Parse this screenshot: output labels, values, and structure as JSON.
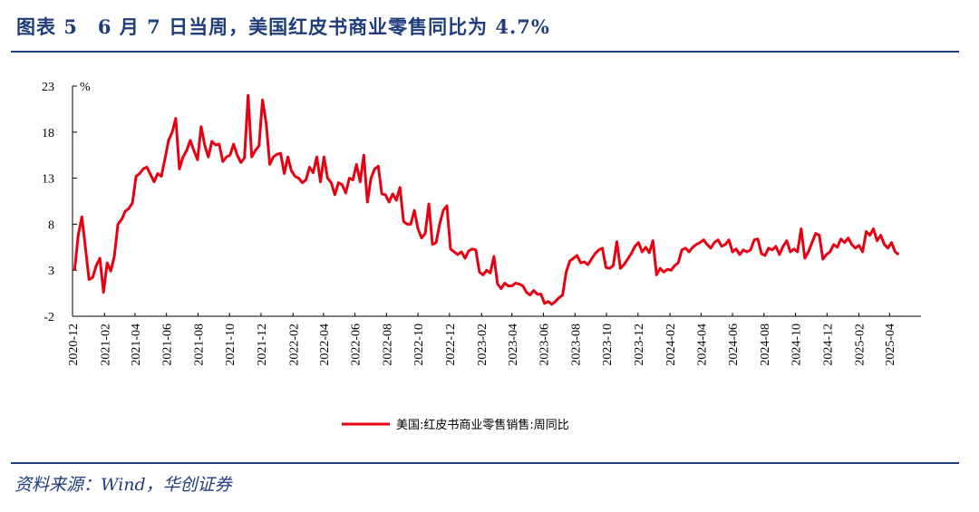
{
  "header": {
    "title": "图表 5　6 月 7 日当周，美国红皮书商业零售同比为 4.7%"
  },
  "footer": {
    "source": "资料来源：Wind，华创证券"
  },
  "colors": {
    "accent": "#1f3d7a",
    "series": "#e60012"
  },
  "chart_data": {
    "type": "line",
    "unit": "%",
    "ylim": [
      -2,
      23
    ],
    "yticks": [
      -2,
      3,
      8,
      13,
      18,
      23
    ],
    "xlim": [
      "2020-12",
      "2025-06"
    ],
    "xticks": [
      "2020-12",
      "2021-02",
      "2021-04",
      "2021-06",
      "2021-08",
      "2021-10",
      "2021-12",
      "2022-02",
      "2022-04",
      "2022-06",
      "2022-08",
      "2022-10",
      "2022-12",
      "2023-02",
      "2023-04",
      "2023-06",
      "2023-08",
      "2023-10",
      "2023-12",
      "2024-02",
      "2024-04",
      "2024-06",
      "2024-08",
      "2024-10",
      "2024-12",
      "2025-02",
      "2025-04"
    ],
    "grid": false,
    "legend_position": "bottom-center",
    "series": [
      {
        "name": "美国:红皮书商业零售销售:周同比",
        "points": [
          [
            "2020-12-05",
            3.0
          ],
          [
            "2020-12-12",
            6.8
          ],
          [
            "2020-12-19",
            8.8
          ],
          [
            "2020-12-26",
            5.5
          ],
          [
            "2021-01-02",
            2.0
          ],
          [
            "2021-01-09",
            2.2
          ],
          [
            "2021-01-16",
            3.5
          ],
          [
            "2021-01-23",
            4.3
          ],
          [
            "2021-01-30",
            0.6
          ],
          [
            "2021-02-06",
            3.8
          ],
          [
            "2021-02-13",
            2.9
          ],
          [
            "2021-02-20",
            4.5
          ],
          [
            "2021-02-27",
            8.0
          ],
          [
            "2021-03-06",
            8.5
          ],
          [
            "2021-03-13",
            9.4
          ],
          [
            "2021-03-20",
            9.7
          ],
          [
            "2021-03-27",
            10.3
          ],
          [
            "2021-04-03",
            13.2
          ],
          [
            "2021-04-10",
            13.5
          ],
          [
            "2021-04-17",
            14.0
          ],
          [
            "2021-04-24",
            14.2
          ],
          [
            "2021-05-01",
            13.4
          ],
          [
            "2021-05-08",
            12.6
          ],
          [
            "2021-05-15",
            13.5
          ],
          [
            "2021-05-22",
            13.2
          ],
          [
            "2021-05-29",
            15.1
          ],
          [
            "2021-06-05",
            17.1
          ],
          [
            "2021-06-12",
            18.0
          ],
          [
            "2021-06-19",
            19.5
          ],
          [
            "2021-06-26",
            14.0
          ],
          [
            "2021-07-03",
            15.3
          ],
          [
            "2021-07-10",
            16.0
          ],
          [
            "2021-07-17",
            17.1
          ],
          [
            "2021-07-24",
            16.0
          ],
          [
            "2021-07-31",
            15.0
          ],
          [
            "2021-08-07",
            18.6
          ],
          [
            "2021-08-14",
            16.6
          ],
          [
            "2021-08-21",
            15.3
          ],
          [
            "2021-08-28",
            17.0
          ],
          [
            "2021-09-04",
            16.6
          ],
          [
            "2021-09-11",
            16.7
          ],
          [
            "2021-09-18",
            14.8
          ],
          [
            "2021-09-25",
            15.3
          ],
          [
            "2021-10-02",
            15.5
          ],
          [
            "2021-10-09",
            16.7
          ],
          [
            "2021-10-16",
            15.5
          ],
          [
            "2021-10-23",
            14.7
          ],
          [
            "2021-10-30",
            15.2
          ],
          [
            "2021-11-06",
            22.0
          ],
          [
            "2021-11-13",
            15.3
          ],
          [
            "2021-11-20",
            16.0
          ],
          [
            "2021-11-27",
            16.5
          ],
          [
            "2021-12-04",
            21.5
          ],
          [
            "2021-12-11",
            19.0
          ],
          [
            "2021-12-18",
            14.5
          ],
          [
            "2021-12-25",
            15.3
          ],
          [
            "2022-01-01",
            15.6
          ],
          [
            "2022-01-08",
            15.7
          ],
          [
            "2022-01-15",
            13.5
          ],
          [
            "2022-01-22",
            15.3
          ],
          [
            "2022-01-29",
            13.8
          ],
          [
            "2022-02-05",
            13.2
          ],
          [
            "2022-02-12",
            13.0
          ],
          [
            "2022-02-19",
            12.5
          ],
          [
            "2022-02-26",
            12.8
          ],
          [
            "2022-03-05",
            14.2
          ],
          [
            "2022-03-12",
            13.6
          ],
          [
            "2022-03-19",
            15.3
          ],
          [
            "2022-03-26",
            12.6
          ],
          [
            "2022-04-02",
            15.3
          ],
          [
            "2022-04-09",
            13.0
          ],
          [
            "2022-04-16",
            12.5
          ],
          [
            "2022-04-23",
            11.2
          ],
          [
            "2022-04-30",
            12.5
          ],
          [
            "2022-05-07",
            12.3
          ],
          [
            "2022-05-14",
            11.4
          ],
          [
            "2022-05-21",
            13.0
          ],
          [
            "2022-05-28",
            12.8
          ],
          [
            "2022-06-04",
            14.5
          ],
          [
            "2022-06-11",
            12.6
          ],
          [
            "2022-06-18",
            15.5
          ],
          [
            "2022-06-25",
            10.4
          ],
          [
            "2022-07-02",
            13.0
          ],
          [
            "2022-07-09",
            14.0
          ],
          [
            "2022-07-16",
            14.3
          ],
          [
            "2022-07-23",
            11.3
          ],
          [
            "2022-07-30",
            11.2
          ],
          [
            "2022-08-06",
            10.4
          ],
          [
            "2022-08-13",
            11.3
          ],
          [
            "2022-08-20",
            10.6
          ],
          [
            "2022-08-27",
            12.0
          ],
          [
            "2022-09-03",
            8.3
          ],
          [
            "2022-09-10",
            8.0
          ],
          [
            "2022-09-17",
            8.0
          ],
          [
            "2022-09-24",
            9.5
          ],
          [
            "2022-10-01",
            7.5
          ],
          [
            "2022-10-08",
            6.5
          ],
          [
            "2022-10-15",
            7.0
          ],
          [
            "2022-10-22",
            10.2
          ],
          [
            "2022-10-29",
            5.8
          ],
          [
            "2022-11-05",
            6.0
          ],
          [
            "2022-11-12",
            8.0
          ],
          [
            "2022-11-19",
            9.5
          ],
          [
            "2022-11-26",
            10.0
          ],
          [
            "2022-12-03",
            5.3
          ],
          [
            "2022-12-10",
            5.0
          ],
          [
            "2022-12-17",
            4.7
          ],
          [
            "2022-12-24",
            5.0
          ],
          [
            "2022-12-31",
            4.3
          ],
          [
            "2023-01-07",
            5.1
          ],
          [
            "2023-01-14",
            5.3
          ],
          [
            "2023-01-21",
            5.2
          ],
          [
            "2023-01-28",
            2.8
          ],
          [
            "2023-02-04",
            2.5
          ],
          [
            "2023-02-11",
            3.0
          ],
          [
            "2023-02-18",
            2.7
          ],
          [
            "2023-02-25",
            4.5
          ],
          [
            "2023-03-04",
            1.5
          ],
          [
            "2023-03-11",
            1.0
          ],
          [
            "2023-03-18",
            1.6
          ],
          [
            "2023-03-25",
            1.3
          ],
          [
            "2023-04-01",
            1.3
          ],
          [
            "2023-04-08",
            1.6
          ],
          [
            "2023-04-15",
            1.5
          ],
          [
            "2023-04-22",
            1.3
          ],
          [
            "2023-04-29",
            0.6
          ],
          [
            "2023-05-06",
            0.3
          ],
          [
            "2023-05-13",
            0.8
          ],
          [
            "2023-05-20",
            0.4
          ],
          [
            "2023-05-27",
            0.4
          ],
          [
            "2023-06-03",
            -0.6
          ],
          [
            "2023-06-10",
            -0.4
          ],
          [
            "2023-06-17",
            -0.7
          ],
          [
            "2023-06-24",
            -0.4
          ],
          [
            "2023-07-01",
            0.0
          ],
          [
            "2023-07-08",
            0.3
          ],
          [
            "2023-07-15",
            2.8
          ],
          [
            "2023-07-22",
            4.0
          ],
          [
            "2023-07-29",
            4.3
          ],
          [
            "2023-08-05",
            4.6
          ],
          [
            "2023-08-12",
            3.8
          ],
          [
            "2023-08-19",
            3.9
          ],
          [
            "2023-08-26",
            3.6
          ],
          [
            "2023-09-02",
            4.2
          ],
          [
            "2023-09-09",
            4.8
          ],
          [
            "2023-09-16",
            5.2
          ],
          [
            "2023-09-23",
            5.4
          ],
          [
            "2023-09-30",
            3.3
          ],
          [
            "2023-10-07",
            3.2
          ],
          [
            "2023-10-14",
            3.5
          ],
          [
            "2023-10-21",
            6.1
          ],
          [
            "2023-10-28",
            3.2
          ],
          [
            "2023-11-04",
            3.6
          ],
          [
            "2023-11-11",
            4.2
          ],
          [
            "2023-11-18",
            4.8
          ],
          [
            "2023-11-25",
            5.6
          ],
          [
            "2023-12-02",
            6.0
          ],
          [
            "2023-12-09",
            5.0
          ],
          [
            "2023-12-16",
            5.5
          ],
          [
            "2023-12-23",
            4.9
          ],
          [
            "2023-12-30",
            6.2
          ],
          [
            "2024-01-06",
            2.5
          ],
          [
            "2024-01-13",
            3.2
          ],
          [
            "2024-01-20",
            2.8
          ],
          [
            "2024-01-27",
            3.1
          ],
          [
            "2024-02-03",
            3.0
          ],
          [
            "2024-02-10",
            3.5
          ],
          [
            "2024-02-17",
            3.8
          ],
          [
            "2024-02-24",
            5.2
          ],
          [
            "2024-03-02",
            5.4
          ],
          [
            "2024-03-09",
            5.0
          ],
          [
            "2024-03-16",
            5.5
          ],
          [
            "2024-03-23",
            5.8
          ],
          [
            "2024-03-30",
            6.0
          ],
          [
            "2024-04-06",
            6.3
          ],
          [
            "2024-04-13",
            5.8
          ],
          [
            "2024-04-20",
            5.4
          ],
          [
            "2024-04-27",
            6.0
          ],
          [
            "2024-05-04",
            6.3
          ],
          [
            "2024-05-11",
            5.6
          ],
          [
            "2024-05-18",
            5.8
          ],
          [
            "2024-05-25",
            6.3
          ],
          [
            "2024-06-01",
            5.0
          ],
          [
            "2024-06-08",
            5.3
          ],
          [
            "2024-06-15",
            4.7
          ],
          [
            "2024-06-22",
            5.2
          ],
          [
            "2024-06-29",
            5.0
          ],
          [
            "2024-07-06",
            5.2
          ],
          [
            "2024-07-13",
            6.3
          ],
          [
            "2024-07-20",
            6.4
          ],
          [
            "2024-07-27",
            4.8
          ],
          [
            "2024-08-03",
            4.6
          ],
          [
            "2024-08-10",
            5.4
          ],
          [
            "2024-08-17",
            5.2
          ],
          [
            "2024-08-24",
            5.6
          ],
          [
            "2024-08-31",
            4.7
          ],
          [
            "2024-09-07",
            5.6
          ],
          [
            "2024-09-14",
            6.2
          ],
          [
            "2024-09-21",
            5.0
          ],
          [
            "2024-09-28",
            5.3
          ],
          [
            "2024-10-05",
            5.0
          ],
          [
            "2024-10-12",
            7.5
          ],
          [
            "2024-10-19",
            4.3
          ],
          [
            "2024-10-26",
            5.0
          ],
          [
            "2024-11-02",
            6.0
          ],
          [
            "2024-11-09",
            7.0
          ],
          [
            "2024-11-16",
            6.8
          ],
          [
            "2024-11-23",
            4.2
          ],
          [
            "2024-11-30",
            4.7
          ],
          [
            "2024-12-07",
            5.0
          ],
          [
            "2024-12-14",
            5.8
          ],
          [
            "2024-12-21",
            5.5
          ],
          [
            "2024-12-28",
            6.4
          ],
          [
            "2025-01-04",
            6.0
          ],
          [
            "2025-01-11",
            6.5
          ],
          [
            "2025-01-18",
            5.8
          ],
          [
            "2025-01-25",
            5.4
          ],
          [
            "2025-02-01",
            5.7
          ],
          [
            "2025-02-08",
            5.0
          ],
          [
            "2025-02-15",
            7.2
          ],
          [
            "2025-02-22",
            6.8
          ],
          [
            "2025-03-01",
            7.5
          ],
          [
            "2025-03-08",
            6.2
          ],
          [
            "2025-03-15",
            6.8
          ],
          [
            "2025-03-22",
            5.8
          ],
          [
            "2025-03-29",
            5.4
          ],
          [
            "2025-04-05",
            6.0
          ],
          [
            "2025-04-12",
            5.0
          ],
          [
            "2025-04-19",
            4.7
          ]
        ]
      }
    ]
  }
}
